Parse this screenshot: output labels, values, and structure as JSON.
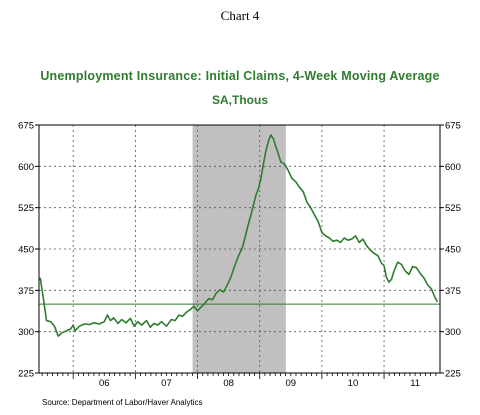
{
  "heading": "Chart 4",
  "source": "Source:  Department of Labor/Haver Analytics",
  "chart_data": {
    "type": "line",
    "title": "Unemployment Insurance: Initial Claims, 4-Week Moving Average",
    "subtitle": "SA,Thous",
    "xlabel": "",
    "ylabel": "",
    "x_tick_labels": [
      "06",
      "07",
      "08",
      "09",
      "10",
      "11"
    ],
    "y_ticks": [
      225,
      300,
      375,
      450,
      525,
      600,
      675
    ],
    "ylim": [
      225,
      675
    ],
    "xlim": [
      2005.45,
      2011.9
    ],
    "grid": true,
    "reference_line": 350,
    "recession_shading": [
      2007.92,
      2009.42
    ],
    "series": [
      {
        "color": "#2e7d2e",
        "points": [
          [
            2005.47,
            398
          ],
          [
            2005.52,
            360
          ],
          [
            2005.57,
            320
          ],
          [
            2005.64,
            318
          ],
          [
            2005.7,
            310
          ],
          [
            2005.76,
            292
          ],
          [
            2005.82,
            298
          ],
          [
            2005.9,
            302
          ],
          [
            2005.96,
            305
          ],
          [
            2006.0,
            312
          ],
          [
            2006.03,
            302
          ],
          [
            2006.1,
            310
          ],
          [
            2006.18,
            314
          ],
          [
            2006.26,
            313
          ],
          [
            2006.34,
            316
          ],
          [
            2006.42,
            314
          ],
          [
            2006.5,
            318
          ],
          [
            2006.55,
            330
          ],
          [
            2006.6,
            320
          ],
          [
            2006.65,
            325
          ],
          [
            2006.72,
            315
          ],
          [
            2006.78,
            322
          ],
          [
            2006.85,
            316
          ],
          [
            2006.92,
            324
          ],
          [
            2006.98,
            310
          ],
          [
            2007.04,
            318
          ],
          [
            2007.1,
            312
          ],
          [
            2007.18,
            320
          ],
          [
            2007.24,
            308
          ],
          [
            2007.3,
            315
          ],
          [
            2007.36,
            312
          ],
          [
            2007.42,
            318
          ],
          [
            2007.5,
            310
          ],
          [
            2007.58,
            322
          ],
          [
            2007.64,
            320
          ],
          [
            2007.7,
            330
          ],
          [
            2007.76,
            328
          ],
          [
            2007.82,
            335
          ],
          [
            2007.88,
            340
          ],
          [
            2007.94,
            346
          ],
          [
            2008.0,
            338
          ],
          [
            2008.06,
            345
          ],
          [
            2008.12,
            352
          ],
          [
            2008.18,
            360
          ],
          [
            2008.24,
            358
          ],
          [
            2008.3,
            370
          ],
          [
            2008.36,
            376
          ],
          [
            2008.42,
            372
          ],
          [
            2008.48,
            385
          ],
          [
            2008.54,
            400
          ],
          [
            2008.6,
            420
          ],
          [
            2008.66,
            438
          ],
          [
            2008.72,
            452
          ],
          [
            2008.78,
            478
          ],
          [
            2008.82,
            496
          ],
          [
            2008.86,
            512
          ],
          [
            2008.9,
            530
          ],
          [
            2008.94,
            548
          ],
          [
            2008.98,
            560
          ],
          [
            2009.02,
            578
          ],
          [
            2009.06,
            604
          ],
          [
            2009.1,
            628
          ],
          [
            2009.14,
            645
          ],
          [
            2009.18,
            657
          ],
          [
            2009.22,
            650
          ],
          [
            2009.26,
            635
          ],
          [
            2009.3,
            622
          ],
          [
            2009.34,
            608
          ],
          [
            2009.4,
            604
          ],
          [
            2009.46,
            592
          ],
          [
            2009.52,
            578
          ],
          [
            2009.58,
            572
          ],
          [
            2009.64,
            562
          ],
          [
            2009.7,
            554
          ],
          [
            2009.76,
            535
          ],
          [
            2009.82,
            525
          ],
          [
            2009.88,
            512
          ],
          [
            2009.94,
            500
          ],
          [
            2010.0,
            480
          ],
          [
            2010.06,
            474
          ],
          [
            2010.12,
            470
          ],
          [
            2010.18,
            464
          ],
          [
            2010.24,
            466
          ],
          [
            2010.3,
            462
          ],
          [
            2010.36,
            470
          ],
          [
            2010.42,
            466
          ],
          [
            2010.48,
            468
          ],
          [
            2010.54,
            474
          ],
          [
            2010.6,
            462
          ],
          [
            2010.66,
            468
          ],
          [
            2010.72,
            456
          ],
          [
            2010.78,
            448
          ],
          [
            2010.84,
            442
          ],
          [
            2010.9,
            438
          ],
          [
            2010.96,
            424
          ],
          [
            2011.0,
            420
          ],
          [
            2011.04,
            398
          ],
          [
            2011.08,
            390
          ],
          [
            2011.12,
            395
          ],
          [
            2011.16,
            410
          ],
          [
            2011.22,
            426
          ],
          [
            2011.28,
            422
          ],
          [
            2011.34,
            410
          ],
          [
            2011.4,
            404
          ],
          [
            2011.46,
            418
          ],
          [
            2011.52,
            416
          ],
          [
            2011.58,
            406
          ],
          [
            2011.64,
            398
          ],
          [
            2011.7,
            385
          ],
          [
            2011.76,
            378
          ],
          [
            2011.82,
            362
          ],
          [
            2011.86,
            354
          ]
        ]
      }
    ]
  }
}
